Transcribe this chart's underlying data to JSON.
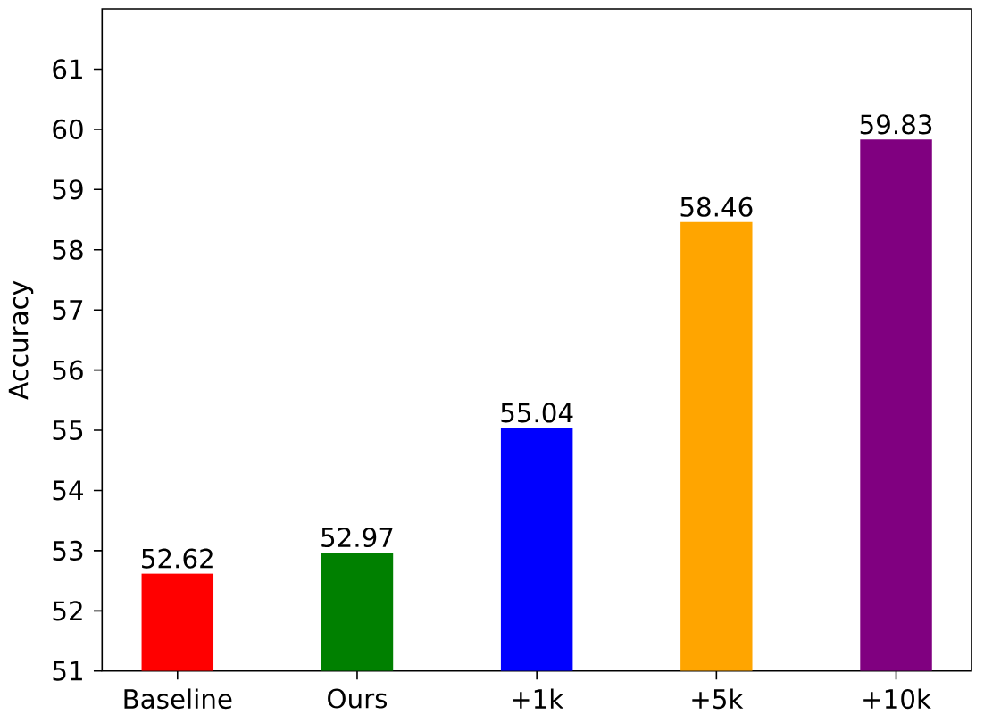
{
  "chart_data": {
    "type": "bar",
    "ylabel": "Accuracy",
    "categories": [
      "Baseline",
      "Ours",
      "+1k",
      "+5k",
      "+10k"
    ],
    "values": [
      52.62,
      52.97,
      55.04,
      58.46,
      59.83
    ],
    "colors": [
      "#ff0000",
      "#008000",
      "#0000ff",
      "#ffa500",
      "#800080"
    ],
    "ylim": [
      51,
      62
    ],
    "yticks": [
      51,
      52,
      53,
      54,
      55,
      56,
      57,
      58,
      59,
      60,
      61
    ],
    "data_labels": true
  }
}
